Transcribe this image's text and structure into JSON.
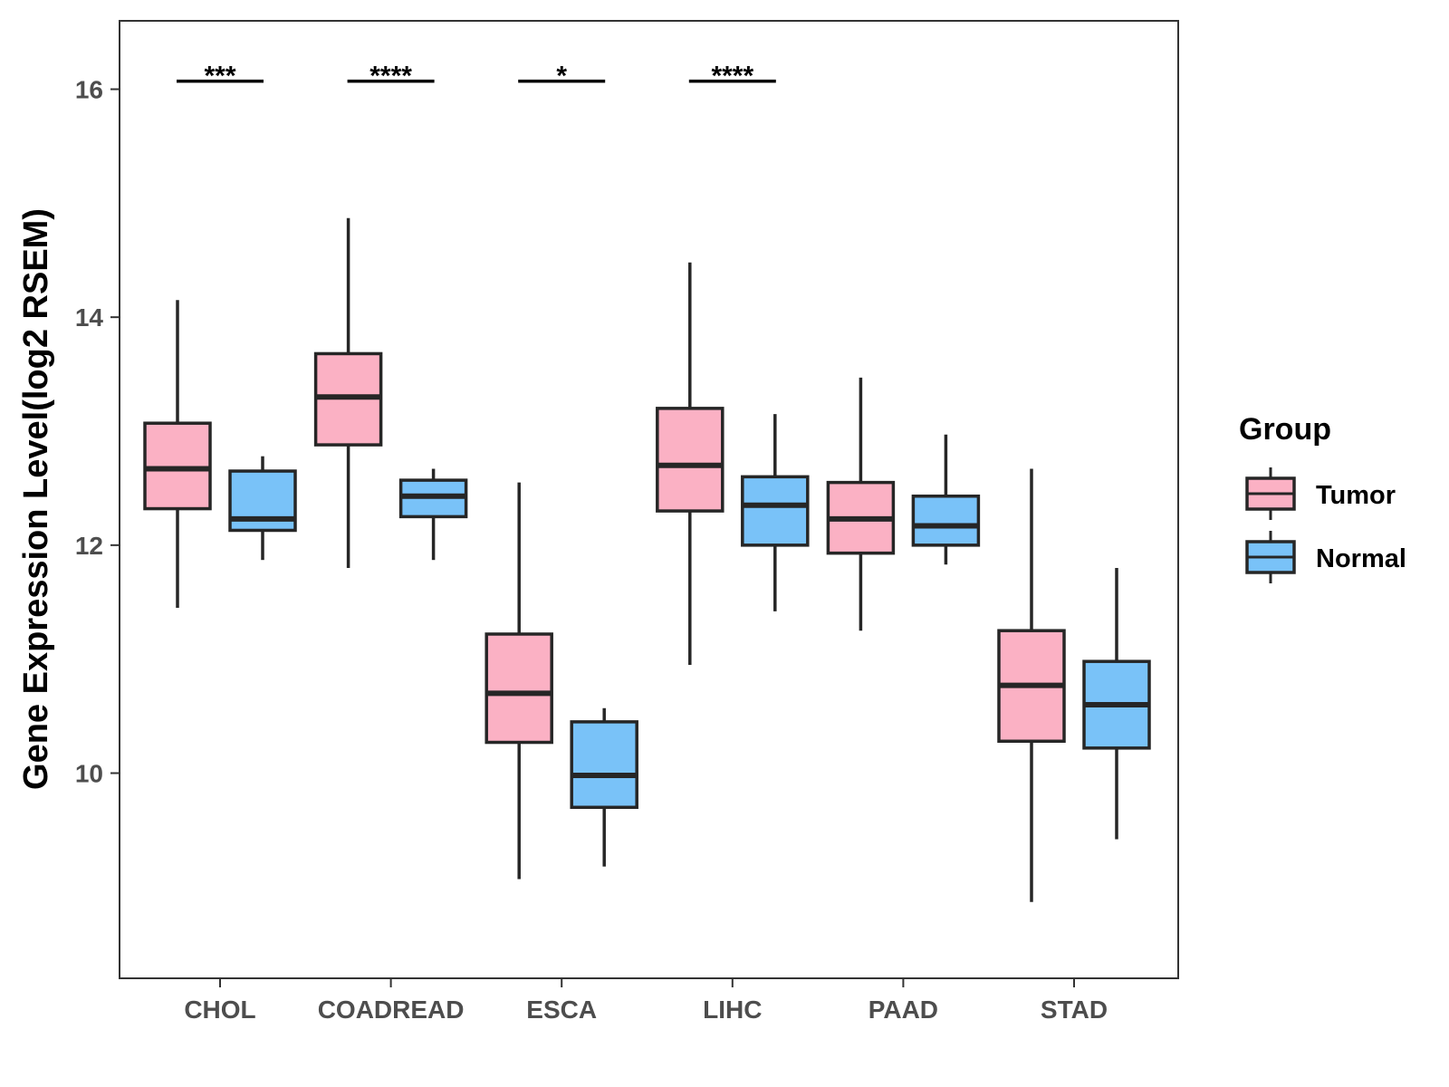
{
  "chart_data": {
    "type": "boxplot",
    "title": "",
    "xlabel": "",
    "ylabel": "Gene Expression Level(log2 RSEM)",
    "ylim": [
      8.2,
      16.6
    ],
    "yticks": [
      10,
      12,
      14,
      16
    ],
    "grid": false,
    "legend_position": "right",
    "categories": [
      "CHOL",
      "COADREAD",
      "ESCA",
      "LIHC",
      "PAAD",
      "STAD"
    ],
    "series": [
      {
        "name": "Tumor",
        "color": "#fbb1c4",
        "boxes": [
          {
            "whisker_low": 11.45,
            "q1": 12.32,
            "median": 12.67,
            "q3": 13.07,
            "whisker_high": 14.15
          },
          {
            "whisker_low": 11.8,
            "q1": 12.88,
            "median": 13.3,
            "q3": 13.68,
            "whisker_high": 14.87
          },
          {
            "whisker_low": 9.07,
            "q1": 10.27,
            "median": 10.7,
            "q3": 11.22,
            "whisker_high": 12.55
          },
          {
            "whisker_low": 10.95,
            "q1": 12.3,
            "median": 12.7,
            "q3": 13.2,
            "whisker_high": 14.48
          },
          {
            "whisker_low": 11.25,
            "q1": 11.93,
            "median": 12.23,
            "q3": 12.55,
            "whisker_high": 13.47
          },
          {
            "whisker_low": 8.87,
            "q1": 10.28,
            "median": 10.77,
            "q3": 11.25,
            "whisker_high": 12.67
          }
        ]
      },
      {
        "name": "Normal",
        "color": "#79c2f8",
        "boxes": [
          {
            "whisker_low": 11.87,
            "q1": 12.13,
            "median": 12.23,
            "q3": 12.65,
            "whisker_high": 12.78
          },
          {
            "whisker_low": 11.87,
            "q1": 12.25,
            "median": 12.43,
            "q3": 12.57,
            "whisker_high": 12.67
          },
          {
            "whisker_low": 9.18,
            "q1": 9.7,
            "median": 9.98,
            "q3": 10.45,
            "whisker_high": 10.57
          },
          {
            "whisker_low": 11.42,
            "q1": 12.0,
            "median": 12.35,
            "q3": 12.6,
            "whisker_high": 13.15
          },
          {
            "whisker_low": 11.83,
            "q1": 12.0,
            "median": 12.17,
            "q3": 12.43,
            "whisker_high": 12.97
          },
          {
            "whisker_low": 9.42,
            "q1": 10.22,
            "median": 10.6,
            "q3": 10.98,
            "whisker_high": 11.8
          }
        ]
      }
    ],
    "significance": [
      "***",
      "****",
      "*",
      "****",
      "",
      ""
    ],
    "significance_y": 16.15,
    "legend": {
      "title": "Group",
      "items": [
        "Tumor",
        "Normal"
      ]
    }
  }
}
